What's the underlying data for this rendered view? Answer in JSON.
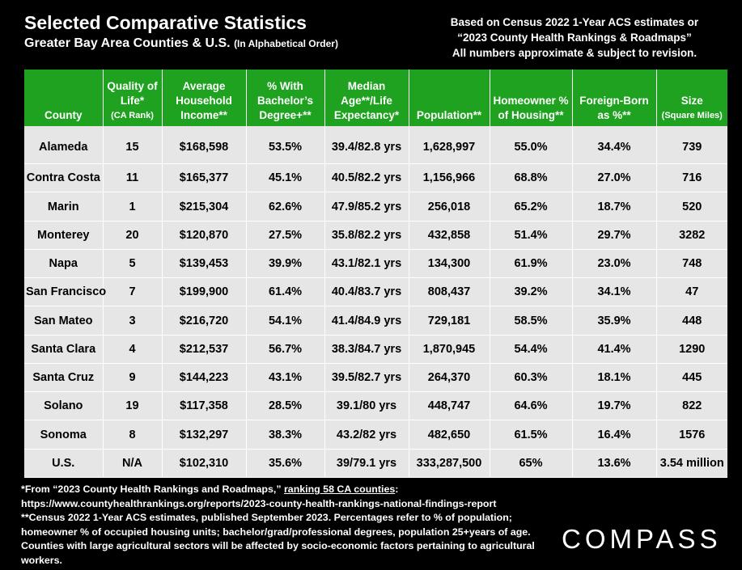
{
  "header": {
    "title": "Selected Comparative Statistics",
    "subtitle": "Greater Bay Area Counties & U.S.",
    "subtitle_note": "(In Alphabetical Order)",
    "source_lines": [
      "Based on Census 2022 1-Year ACS estimates or",
      "“2023 County Health Rankings & Roadmaps”",
      "All numbers approximate & subject to revision."
    ]
  },
  "table": {
    "columns": [
      {
        "label": "County",
        "sub": ""
      },
      {
        "label": "Quality of Life*",
        "sub": "(CA Rank)"
      },
      {
        "label": "Average Household Income**",
        "sub": ""
      },
      {
        "label": "% With Bachelor’s Degree+**",
        "sub": ""
      },
      {
        "label": "Median Age**/Life Expectancy*",
        "sub": ""
      },
      {
        "label": "Population**",
        "sub": ""
      },
      {
        "label": "Homeowner % of Housing**",
        "sub": ""
      },
      {
        "label": "Foreign-Born as %**",
        "sub": ""
      },
      {
        "label": "Size",
        "sub": "(Square Miles)"
      }
    ],
    "rows": [
      [
        "Alameda",
        "15",
        "$168,598",
        "53.5%",
        "39.4/82.8 yrs",
        "1,628,997",
        "55.0%",
        "34.4%",
        "739"
      ],
      [
        "Contra Costa",
        "11",
        "$165,377",
        "45.1%",
        "40.5/82.2 yrs",
        "1,156,966",
        "68.8%",
        "27.0%",
        "716"
      ],
      [
        "Marin",
        "1",
        "$215,304",
        "62.6%",
        "47.9/85.2 yrs",
        "256,018",
        "65.2%",
        "18.7%",
        "520"
      ],
      [
        "Monterey",
        "20",
        "$120,870",
        "27.5%",
        "35.8/82.2 yrs",
        "432,858",
        "51.4%",
        "29.7%",
        "3282"
      ],
      [
        "Napa",
        "5",
        "$139,453",
        "39.9%",
        "43.1/82.1 yrs",
        "134,300",
        "61.9%",
        "23.0%",
        "748"
      ],
      [
        "San Francisco",
        "7",
        "$199,900",
        "61.4%",
        "40.4/83.7 yrs",
        "808,437",
        "39.2%",
        "34.1%",
        "47"
      ],
      [
        "San Mateo",
        "3",
        "$216,720",
        "54.1%",
        "41.4/84.9 yrs",
        "729,181",
        "58.5%",
        "35.9%",
        "448"
      ],
      [
        "Santa Clara",
        "4",
        "$212,537",
        "56.7%",
        "38.3/84.7 yrs",
        "1,870,945",
        "54.4%",
        "41.4%",
        "1290"
      ],
      [
        "Santa Cruz",
        "9",
        "$144,223",
        "43.1%",
        "39.5/82.7 yrs",
        "264,370",
        "60.3%",
        "18.1%",
        "445"
      ],
      [
        "Solano",
        "19",
        "$117,358",
        "28.5%",
        "39.1/80 yrs",
        "448,747",
        "64.6%",
        "19.7%",
        "822"
      ],
      [
        "Sonoma",
        "8",
        "$132,297",
        "38.3%",
        "43.2/82 yrs",
        "482,650",
        "61.5%",
        "16.4%",
        "1576"
      ],
      [
        "U.S.",
        "N/A",
        "$102,310",
        "35.6%",
        "39/79.1 yrs",
        "333,287,500",
        "65%",
        "13.6%",
        "3.54 million"
      ]
    ]
  },
  "footnotes": {
    "line1_prefix": "*From “2023 County Health Rankings and Roadmaps,” ",
    "line1_link": "ranking 58 CA counties",
    "line1_suffix": ":",
    "line2": "https://www.countyhealthrankings.org/reports/2023-county-health-rankings-national-findings-report",
    "line3": "**Census 2022 1-Year ACS estimates, published September 2023. Percentages refer to % of population;",
    "line4": "homeowner % of occupied housing units; bachelor/grad/professional degrees, population 25+years of age.",
    "line5": "Counties with large agricultural sectors will be affected by socio-economic factors pertaining to agricultural",
    "line6": "workers."
  },
  "logo": "COMPASS"
}
